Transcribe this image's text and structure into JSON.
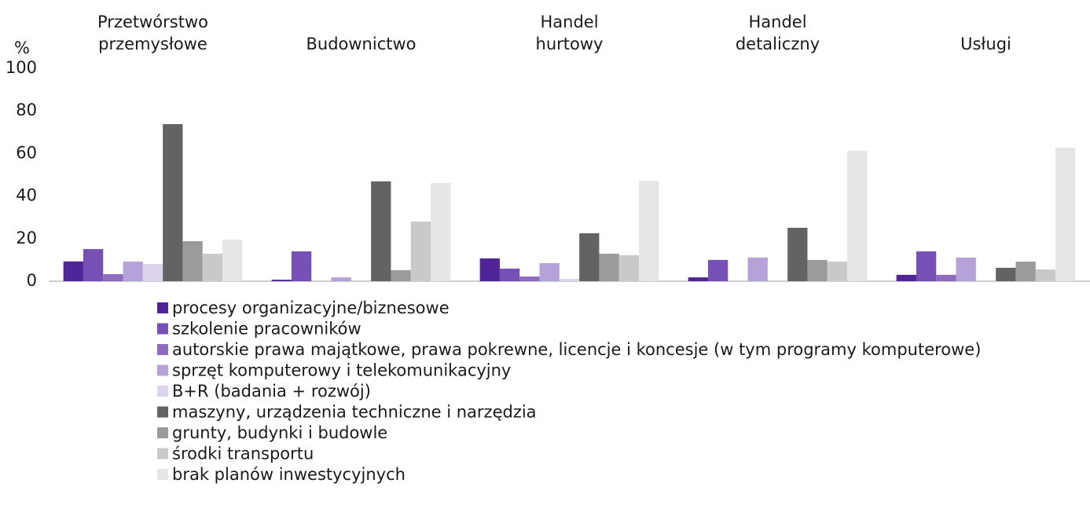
{
  "chart_data": {
    "type": "bar",
    "y_label": "%",
    "categories": [
      "Przetwórstwo\nprzemysłowe",
      "Budownictwo",
      "Handel\nhurtowy",
      "Handel\ndetaliczny",
      "Usługi"
    ],
    "ylim": [
      0,
      100
    ],
    "yticks": [
      0,
      20,
      40,
      60,
      80,
      100
    ],
    "series": [
      {
        "name": "procesy organizacyjne/biznesowe",
        "color": "#4f2597",
        "values": [
          9.3,
          0.7,
          10.7,
          1.8,
          3.0
        ]
      },
      {
        "name": "szkolenie pracowników",
        "color": "#7650b4",
        "values": [
          15.1,
          14.0,
          5.9,
          10.0,
          14.0
        ]
      },
      {
        "name": "autorskie prawa majątkowe, prawa pokrewne, licencje i koncesje (w tym programy komputerowe)",
        "color": "#8d6cc0",
        "values": [
          3.3,
          0,
          2.2,
          0,
          3.0
        ]
      },
      {
        "name": "sprzęt komputerowy i telekomunikacyjny",
        "color": "#b4a2d8",
        "values": [
          9.2,
          1.8,
          8.5,
          11.1,
          11.1
        ]
      },
      {
        "name": "B+R (badania + rozwój)",
        "color": "#ddd5ee",
        "values": [
          8.1,
          0,
          1.1,
          0,
          0
        ]
      },
      {
        "name": "maszyny, urządzenia techniczne i narzędzia",
        "color": "#636363",
        "values": [
          73.8,
          46.9,
          22.5,
          25.1,
          6.3
        ]
      },
      {
        "name": "grunty, budynki i budowle",
        "color": "#9b9b9b",
        "values": [
          18.8,
          5.2,
          12.9,
          10.0,
          9.2
        ]
      },
      {
        "name": "środki transportu",
        "color": "#c9c9c9",
        "values": [
          12.9,
          28.0,
          12.2,
          9.2,
          5.5
        ]
      },
      {
        "name": "brak planów inwestycyjnych",
        "color": "#e6e6e6",
        "values": [
          19.6,
          46.1,
          47.2,
          61.3,
          62.7
        ]
      }
    ]
  }
}
